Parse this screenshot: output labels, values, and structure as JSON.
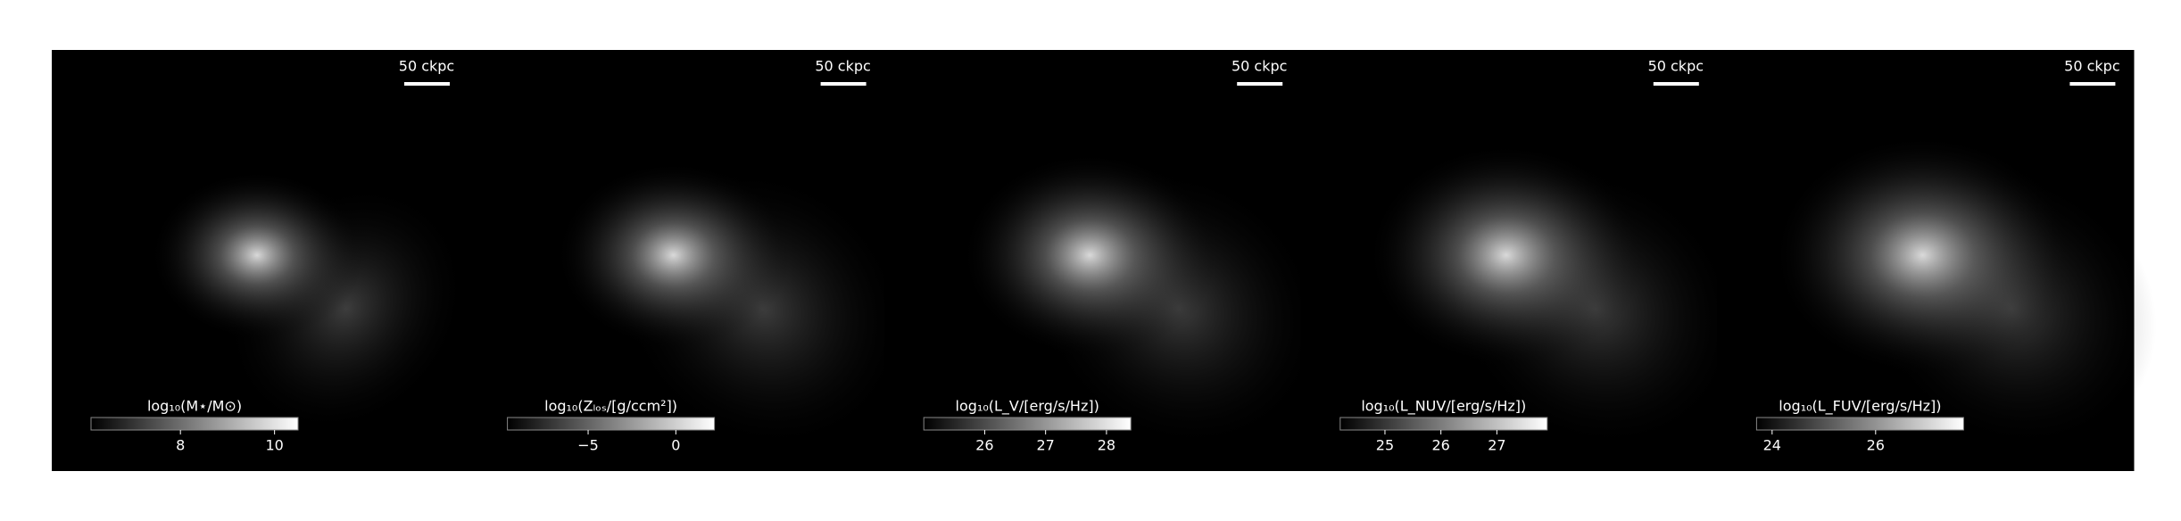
{
  "chart_data": [
    {
      "type": "colorbar",
      "scalebar_label": "50 ckpc",
      "label": "log₁₀(M⋆/M⊙)",
      "xlim": [
        6.1,
        10.5
      ],
      "xticks": [
        8,
        10
      ]
    },
    {
      "type": "colorbar",
      "scalebar_label": "50 ckpc",
      "label": "log₁₀(Zₗₒₛ/[g/ccm²])",
      "xlim": [
        -9.6,
        2.2
      ],
      "xticks": [
        {
          "value": -5,
          "label": "−5"
        },
        0
      ]
    },
    {
      "type": "colorbar",
      "scalebar_label": "50 ckpc",
      "label": "log₁₀(L_V/[erg/s/Hz])",
      "xlim": [
        25.0,
        28.4
      ],
      "xticks": [
        26,
        27,
        28
      ]
    },
    {
      "type": "colorbar",
      "scalebar_label": "50 ckpc",
      "label": "log₁₀(L_NUV/[erg/s/Hz])",
      "xlim": [
        24.2,
        27.9
      ],
      "xticks": [
        25,
        26,
        27
      ]
    },
    {
      "type": "colorbar",
      "scalebar_label": "50 ckpc",
      "label": "log₁₀(L_FUV/[erg/s/Hz])",
      "xlim": [
        23.7,
        27.7
      ],
      "xticks": [
        24,
        26
      ]
    }
  ]
}
